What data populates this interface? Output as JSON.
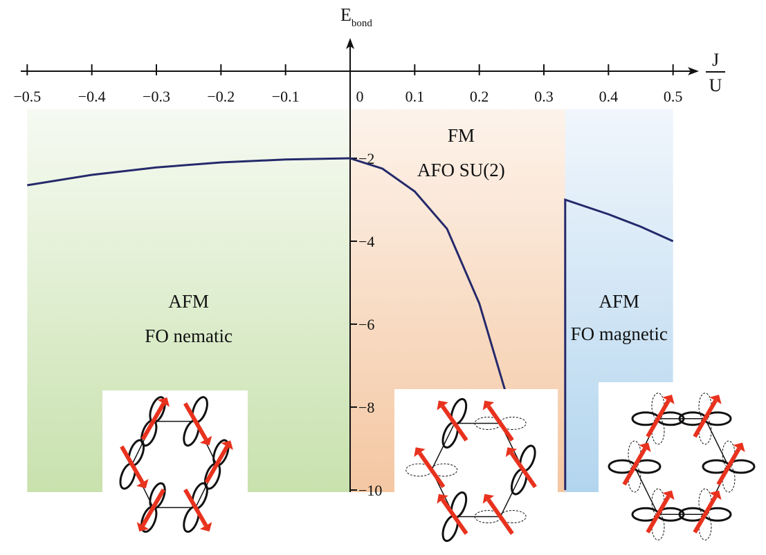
{
  "chart_data": {
    "type": "line",
    "y_label": {
      "main": "E",
      "sub": "bond"
    },
    "x_label": {
      "numerator": "J",
      "denominator": "U"
    },
    "xlim": [
      -0.51,
      0.54
    ],
    "ylim": [
      -10.05,
      0.9
    ],
    "xticks": [
      {
        "value": -0.5,
        "label": "−0.5"
      },
      {
        "value": -0.4,
        "label": "−0.4"
      },
      {
        "value": -0.3,
        "label": "−0.3"
      },
      {
        "value": -0.2,
        "label": "−0.2"
      },
      {
        "value": -0.1,
        "label": "−0.1"
      },
      0,
      0.1,
      0.2,
      0.3,
      0.4,
      0.5
    ],
    "yticks": [
      {
        "value": -2,
        "label": "−2"
      },
      {
        "value": -4,
        "label": "−4"
      },
      {
        "value": -6,
        "label": "−6"
      },
      {
        "value": -8,
        "label": "−8"
      },
      {
        "value": -10,
        "label": "−10"
      }
    ],
    "regions": [
      {
        "lines": [
          "AFM",
          "FO nematic"
        ],
        "x": [
          -0.5,
          0
        ],
        "colors": [
          "#f6faf2",
          "#c8e1ad"
        ]
      },
      {
        "lines": [
          "FM",
          "AFO SU(2)"
        ],
        "x": [
          0,
          0.333
        ],
        "colors": [
          "#fdf3eb",
          "#f4c7a2"
        ]
      },
      {
        "lines": [
          "AFM",
          "FO magnetic"
        ],
        "x": [
          0.333,
          0.5
        ],
        "colors": [
          "#f1f6fc",
          "#b2d5ee"
        ]
      }
    ],
    "series": [
      {
        "color": "#25296b",
        "x": [
          -0.5,
          -0.4,
          -0.3,
          -0.2,
          -0.1,
          0
        ],
        "values": [
          -2.65,
          -2.4,
          -2.22,
          -2.1,
          -2.03,
          -2
        ]
      },
      {
        "color": "#25296b",
        "x": [
          0,
          0.05,
          0.1,
          0.15,
          0.2,
          0.24
        ],
        "values": [
          -2,
          -2.25,
          -2.8,
          -3.7,
          -5.5,
          -7.6
        ]
      },
      {
        "color": "#25296b",
        "x": [
          0.333,
          0.333,
          0.4,
          0.45,
          0.5
        ],
        "values": [
          -10,
          -3,
          -3.35,
          -3.65,
          -4
        ]
      }
    ]
  }
}
